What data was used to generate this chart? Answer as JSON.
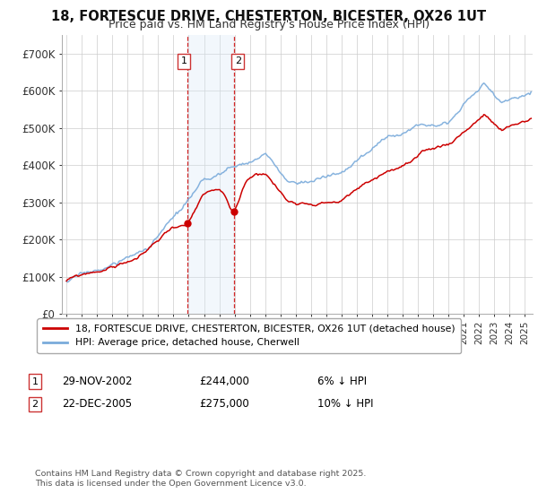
{
  "title1": "18, FORTESCUE DRIVE, CHESTERTON, BICESTER, OX26 1UT",
  "title2": "Price paid vs. HM Land Registry's House Price Index (HPI)",
  "ylim": [
    0,
    750000
  ],
  "yticks": [
    0,
    100000,
    200000,
    300000,
    400000,
    500000,
    600000,
    700000
  ],
  "ytick_labels": [
    "£0",
    "£100K",
    "£200K",
    "£300K",
    "£400K",
    "£500K",
    "£600K",
    "£700K"
  ],
  "xlim_start": 1994.7,
  "xlim_end": 2025.5,
  "xticks": [
    1995,
    1996,
    1997,
    1998,
    1999,
    2000,
    2001,
    2002,
    2003,
    2004,
    2005,
    2006,
    2007,
    2008,
    2009,
    2010,
    2011,
    2012,
    2013,
    2014,
    2015,
    2016,
    2017,
    2018,
    2019,
    2020,
    2021,
    2022,
    2023,
    2024,
    2025
  ],
  "red_line_color": "#cc0000",
  "blue_line_color": "#7aabdb",
  "shade_color": "#daeaf7",
  "vline_color": "#cc0000",
  "marker1_x": 2002.92,
  "marker1_y": 244000,
  "marker2_x": 2005.97,
  "marker2_y": 275000,
  "legend_label1": "18, FORTESCUE DRIVE, CHESTERTON, BICESTER, OX26 1UT (detached house)",
  "legend_label2": "HPI: Average price, detached house, Cherwell",
  "table_date1": "29-NOV-2002",
  "table_price1": "£244,000",
  "table_hpi1": "6% ↓ HPI",
  "table_date2": "22-DEC-2005",
  "table_price2": "£275,000",
  "table_hpi2": "10% ↓ HPI",
  "footer": "Contains HM Land Registry data © Crown copyright and database right 2025.\nThis data is licensed under the Open Government Licence v3.0.",
  "bg_color": "#ffffff",
  "grid_color": "#cccccc"
}
